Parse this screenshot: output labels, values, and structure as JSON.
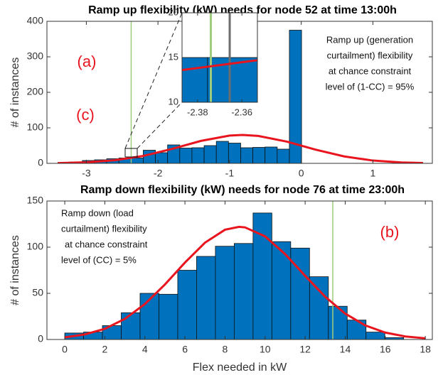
{
  "chart_data": [
    {
      "type": "histogram",
      "title": "Ramp up flexibility (kW) needs for node 52 at time 13:00h",
      "y_label": "# of instances",
      "bins": [
        -3.3955,
        -3.2255,
        -3.0555,
        -2.8855,
        -2.7155,
        -2.5455,
        -2.3755,
        -2.2055,
        -2.0355,
        -1.8655,
        -1.6955,
        -1.5255,
        -1.3555,
        -1.1855,
        -1.0155,
        -0.8455,
        -0.6755,
        -0.5055,
        -0.3355,
        -0.1655,
        0.0045
      ],
      "values": [
        2,
        4,
        8,
        10,
        13,
        15,
        15,
        37,
        30,
        52,
        43,
        44,
        50,
        62,
        57,
        44,
        45,
        46,
        40,
        375
      ],
      "bar_color": "#0072bd",
      "edge_color": "#111111",
      "fit": {
        "color": "#e8141e",
        "x": [
          -3.4,
          -3.0,
          -2.6,
          -2.2,
          -1.8,
          -1.4,
          -1.0,
          -0.82,
          -0.6,
          -0.2,
          0.2,
          0.6,
          1.0,
          1.4,
          1.7
        ],
        "values": [
          0.76,
          2.9,
          8.7,
          21.1,
          40.8,
          63.2,
          78.2,
          80,
          77.3,
          61.1,
          38.6,
          19.5,
          7.9,
          2.5,
          0.9
        ]
      },
      "vlines": [
        {
          "x": -2.374,
          "color": "#9fcc7c"
        }
      ],
      "xlim": [
        -3.55,
        1.83
      ],
      "ylim": [
        0,
        400
      ],
      "xticks": [
        -3,
        -2,
        -1,
        0,
        1
      ],
      "yticks": [
        0,
        100,
        200,
        300,
        400
      ],
      "annotations": [
        {
          "text": "(a)",
          "color": "#e8141e"
        },
        {
          "text": "(c)",
          "color": "#e8141e"
        }
      ],
      "notes": [
        "Ramp up (generation",
        "curtailment) flexibility",
        "at chance constraint",
        "level of (1-CC) = 95%"
      ]
    },
    {
      "type": "histogram",
      "bins": [
        -2.5455,
        -2.3755,
        -2.2055
      ],
      "values": [
        15,
        15
      ],
      "bar_color": "#0072bd",
      "edge_color": "#111111",
      "fit": {
        "color": "#e8141e",
        "x": [
          -2.387,
          -2.353
        ],
        "values": [
          13.6,
          14.7
        ]
      },
      "vlines": [
        {
          "x": -2.374,
          "color": "#9fcc7c"
        },
        {
          "x": -2.3655,
          "color": "#6d6d6d"
        }
      ],
      "xlim": [
        -2.387,
        -2.353
      ],
      "ylim": [
        10,
        20
      ],
      "xticks": [
        -2.38,
        -2.36
      ],
      "yticks": [
        10,
        15,
        20
      ]
    },
    {
      "type": "histogram",
      "title": "Ramp down flexibility (kW) needs for node 76 at time 23:00h",
      "x_label": "Flex needed in kW",
      "y_label": "# of instances",
      "bins": [
        0,
        0.94,
        1.88,
        2.82,
        3.76,
        4.7,
        5.64,
        6.58,
        7.52,
        8.46,
        9.4,
        10.34,
        11.28,
        12.22,
        13.16,
        14.1,
        15.04,
        15.98,
        16.92
      ],
      "values": [
        7,
        8,
        15,
        29,
        50,
        49,
        75,
        90,
        101,
        104,
        137,
        106,
        99,
        68,
        36,
        21,
        8,
        2
      ],
      "bar_color": "#0072bd",
      "edge_color": "#111111",
      "fit": {
        "color": "#e8141e",
        "x": [
          0,
          1,
          2,
          3,
          4,
          5,
          6,
          7,
          8,
          8.7,
          9,
          10,
          11,
          12,
          13,
          14,
          15,
          16,
          17,
          18
        ],
        "values": [
          2.3,
          5.5,
          11.6,
          22.3,
          38.4,
          59.6,
          83.3,
          104.9,
          118.9,
          122,
          121.4,
          111.7,
          92.5,
          69.0,
          46.3,
          28.0,
          15.3,
          7.5,
          3.3,
          1.3
        ]
      },
      "vlines": [
        {
          "x": 13.38,
          "color": "#9fcc7c"
        }
      ],
      "xlim": [
        -0.89,
        18.35
      ],
      "ylim": [
        0,
        150
      ],
      "xticks": [
        0,
        2,
        4,
        6,
        8,
        10,
        12,
        14,
        16,
        18
      ],
      "yticks": [
        0,
        50,
        100,
        150
      ],
      "annotations": [
        {
          "text": "(b)",
          "color": "#e8141e"
        }
      ],
      "notes": [
        "Ramp down (load",
        "curtailment) flexibility",
        "at chance constraint",
        "level of (CC) = 5%"
      ]
    }
  ]
}
